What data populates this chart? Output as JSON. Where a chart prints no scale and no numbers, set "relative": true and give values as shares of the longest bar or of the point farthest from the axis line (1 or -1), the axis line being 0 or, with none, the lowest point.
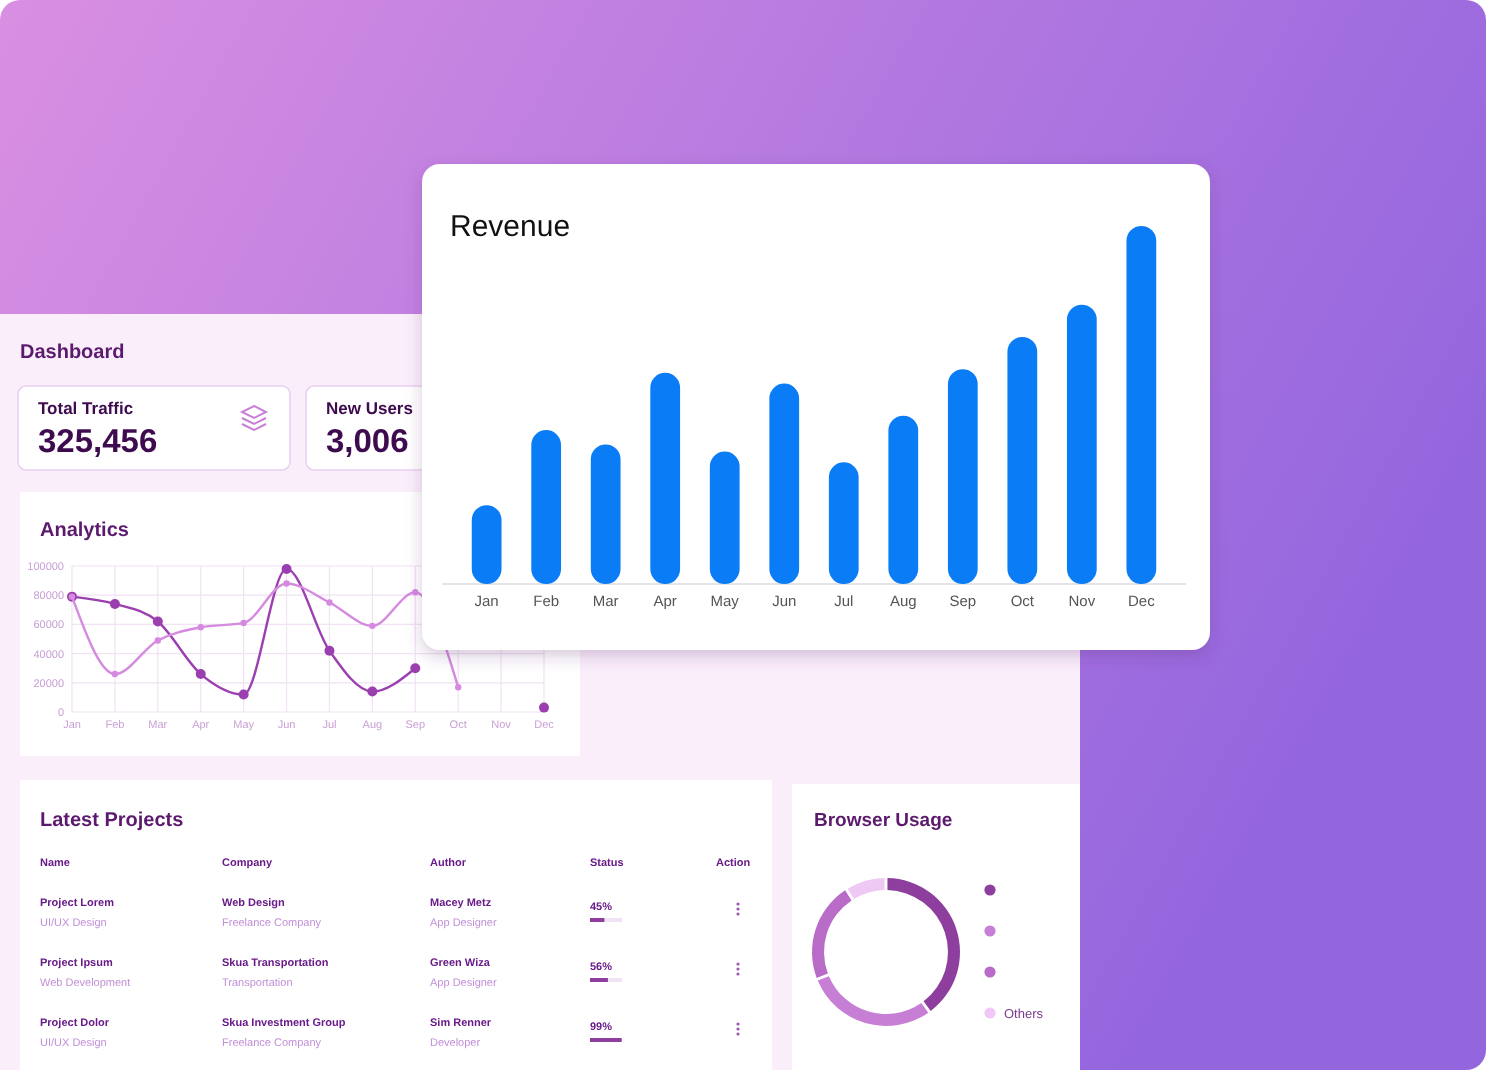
{
  "chart_data": [
    {
      "type": "bar",
      "title": "Revenue",
      "relative": true,
      "categories": [
        "Jan",
        "Feb",
        "Mar",
        "Apr",
        "May",
        "Jun",
        "Jul",
        "Aug",
        "Sep",
        "Oct",
        "Nov",
        "Dec"
      ],
      "values": [
        0.22,
        0.43,
        0.39,
        0.59,
        0.37,
        0.56,
        0.34,
        0.47,
        0.6,
        0.69,
        0.78,
        1
      ],
      "color": "#0a7cf5"
    },
    {
      "type": "other",
      "title": "Dashboard",
      "annotations": [
        "Total Traffic",
        "325,456",
        "New Users",
        "3,006"
      ]
    },
    {
      "type": "line",
      "title": "Analytics",
      "categories": [
        "Jan",
        "Feb",
        "Mar",
        "Apr",
        "May",
        "Jun",
        "Jul",
        "Aug",
        "Sep",
        "Oct",
        "Nov",
        "Dec"
      ],
      "ylim": [
        0,
        100000
      ],
      "yticks": [
        0,
        20000,
        40000,
        60000,
        80000,
        100000
      ],
      "grid": true,
      "marker": "circle",
      "series": [
        {
          "color": "#9b3fb0",
          "values": [
            79000,
            74000,
            62000,
            26000,
            12000,
            98000,
            42000,
            14000,
            30000,
            null,
            null,
            3000
          ]
        },
        {
          "color": "#d58ae0",
          "values": [
            79000,
            26000,
            49000,
            58000,
            61000,
            88000,
            75000,
            59000,
            82000,
            17000,
            null,
            null
          ]
        }
      ]
    },
    {
      "type": "other",
      "title": "Latest Projects",
      "annotations": [
        "Name",
        "Company",
        "Author",
        "Status",
        "Action",
        "Project Lorem",
        "UI/UX Design",
        "Web Design",
        "Freelance Company",
        "Macey Metz",
        "App Designer",
        "Project Ipsum",
        "Web Development",
        "Skua Transportation",
        "Transportation",
        "Green Wiza",
        "App Designer",
        "Project Dolor",
        "UI/UX Design",
        "Skua Investment Group",
        "Freelance Company",
        "Sim Renner",
        "Developer"
      ],
      "values": [
        45,
        56,
        99
      ],
      "value_labels": [
        "45%",
        "56%",
        "99%"
      ]
    },
    {
      "type": "donut",
      "title": "Browser Usage",
      "categories": [
        null,
        null,
        null,
        "Others"
      ],
      "values": [
        40,
        29,
        22,
        9
      ],
      "colors": [
        "#8e3f9e",
        "#c77fd6",
        "#b86cc8",
        "#efc8f5"
      ],
      "legend": "right"
    }
  ]
}
